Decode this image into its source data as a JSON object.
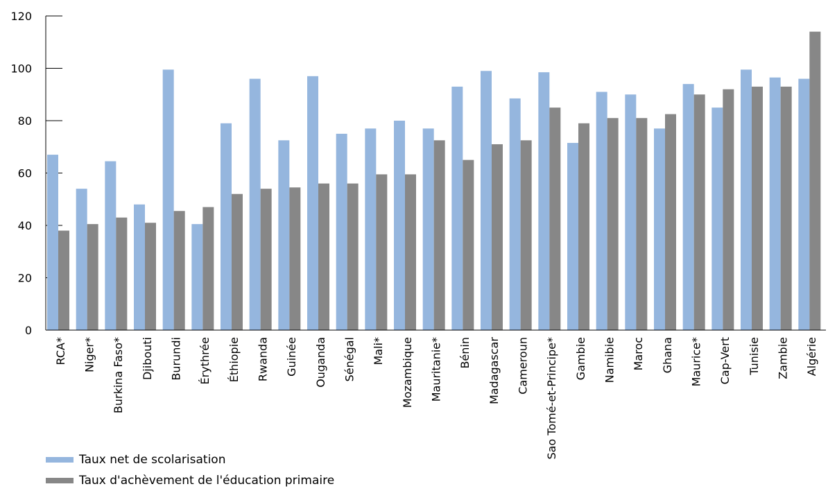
{
  "chart_data": {
    "type": "bar",
    "categories": [
      "RCA*",
      "Niger*",
      "Burkina Faso*",
      "Djibouti",
      "Burundi",
      "Érythrée",
      "Éthiopie",
      "Rwanda",
      "Guinée",
      "Ouganda",
      "Sénégal",
      "Mali*",
      "Mozambique",
      "Mauritanie*",
      "Bénin",
      "Madagascar",
      "Cameroun",
      "Sao Tomé-et-Principe*",
      "Gambie",
      "Namibie",
      "Maroc",
      "Ghana",
      "Maurice*",
      "Cap-Vert",
      "Tunisie",
      "Zambie",
      "Algérie"
    ],
    "series": [
      {
        "name": "Taux net de scolarisation",
        "color": "#95B6DE",
        "values": [
          67,
          54,
          64.5,
          48,
          99.5,
          40.5,
          79,
          96,
          72.5,
          97,
          75,
          77,
          80,
          77,
          93,
          99,
          88.5,
          98.5,
          71.5,
          91,
          90,
          77,
          94,
          85,
          99.5,
          96.5,
          96
        ]
      },
      {
        "name": "Taux d'achèvement de l'éducation primaire",
        "color": "#878787",
        "values": [
          38,
          40.5,
          43,
          41,
          45.5,
          47,
          52,
          54,
          54.5,
          56,
          56,
          59.5,
          59.5,
          72.5,
          65,
          71,
          72.5,
          85,
          79,
          81,
          81,
          82.5,
          90,
          92,
          93,
          93,
          114
        ]
      }
    ],
    "ylim": [
      0,
      120
    ],
    "yticks": [
      0,
      20,
      40,
      60,
      80,
      100,
      120
    ],
    "grid": false,
    "legend": "bottom-left"
  },
  "legend": {
    "items": [
      {
        "label": "Taux net de scolarisation",
        "color": "#95B6DE"
      },
      {
        "label": "Taux d'achèvement de l'éducation primaire",
        "color": "#878787"
      }
    ]
  }
}
